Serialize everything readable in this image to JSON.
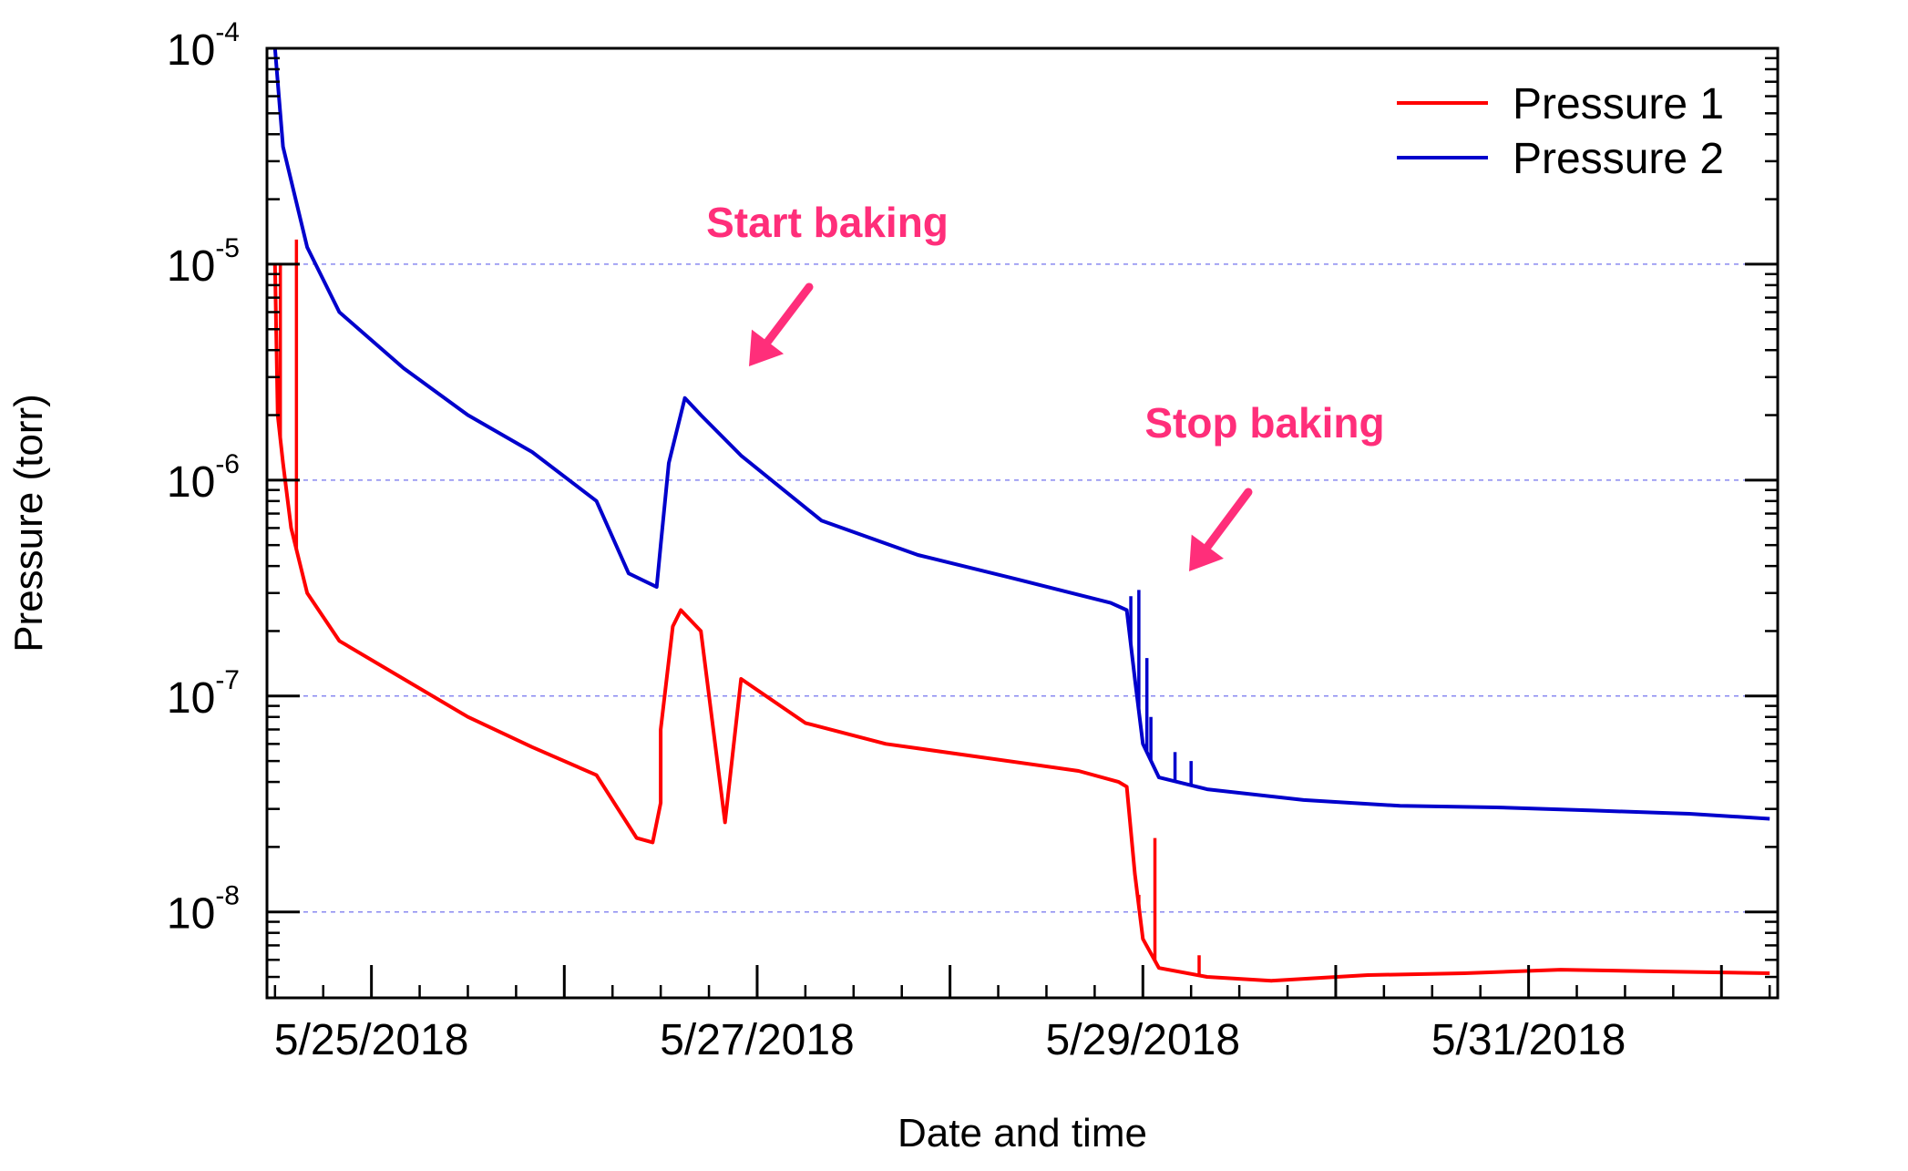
{
  "chart_data": {
    "type": "line",
    "title": "",
    "xlabel": "Date and time",
    "ylabel": "Pressure (torr)",
    "y_scale": "log",
    "ylim": [
      "1.0e-8 / 2.5 (~4e-9)",
      "1e-4"
    ],
    "ylim_numeric": [
      4e-09,
      0.0001
    ],
    "xlim": [
      "2018-05-24 11:00",
      "2018-06-01 07:00"
    ],
    "x_ticks": [
      "5/25/2018",
      "5/27/2018",
      "5/29/2018",
      "5/31/2018"
    ],
    "x_tick_dates": [
      "2018-05-25 00:00",
      "2018-05-27 00:00",
      "2018-05-29 00:00",
      "2018-05-31 00:00"
    ],
    "y_ticks": [
      {
        "value": 1e-08,
        "base": "10",
        "exp": "-8"
      },
      {
        "value": 1e-07,
        "base": "10",
        "exp": "-7"
      },
      {
        "value": 1e-06,
        "base": "10",
        "exp": "-6"
      },
      {
        "value": 1e-05,
        "base": "10",
        "exp": "-5"
      },
      {
        "value": 0.0001,
        "base": "10",
        "exp": "-4"
      }
    ],
    "grid": "horizontal dashed at decades",
    "legend_position": "top-right",
    "series": [
      {
        "name": "Pressure 1",
        "color": "#ff0000",
        "points": [
          [
            "2018-05-24 12:00",
            1e-05
          ],
          [
            "2018-05-24 12:20",
            2e-06
          ],
          [
            "2018-05-24 13:00",
            1.2e-06
          ],
          [
            "2018-05-24 14:00",
            6e-07
          ],
          [
            "2018-05-24 16:00",
            3e-07
          ],
          [
            "2018-05-24 20:00",
            1.8e-07
          ],
          [
            "2018-05-25 04:00",
            1.2e-07
          ],
          [
            "2018-05-25 12:00",
            8e-08
          ],
          [
            "2018-05-25 20:00",
            5.8e-08
          ],
          [
            "2018-05-26 04:00",
            4.3e-08
          ],
          [
            "2018-05-26 12:00",
            3.2e-08
          ],
          [
            "2018-05-26 20:00",
            2.6e-08
          ],
          [
            "2018-05-26 09:00",
            2.2e-08
          ],
          [
            "2018-05-26 11:00",
            2.1e-08
          ],
          [
            "2018-05-26 12:00",
            7e-08
          ],
          [
            "2018-05-26 13:30",
            2.1e-07
          ],
          [
            "2018-05-26 14:30",
            2.5e-07
          ],
          [
            "2018-05-26 17:00",
            2e-07
          ],
          [
            "2018-05-26 22:00",
            1.2e-07
          ],
          [
            "2018-05-27 06:00",
            7.5e-08
          ],
          [
            "2018-05-27 16:00",
            6e-08
          ],
          [
            "2018-05-28 04:00",
            5.2e-08
          ],
          [
            "2018-05-28 16:00",
            4.5e-08
          ],
          [
            "2018-05-28 21:00",
            4e-08
          ],
          [
            "2018-05-28 22:00",
            3.8e-08
          ],
          [
            "2018-05-28 23:00",
            1.5e-08
          ],
          [
            "2018-05-29 00:00",
            7.5e-09
          ],
          [
            "2018-05-29 02:00",
            5.5e-09
          ],
          [
            "2018-05-29 08:00",
            5e-09
          ],
          [
            "2018-05-29 16:00",
            4.8e-09
          ],
          [
            "2018-05-30 04:00",
            5.1e-09
          ],
          [
            "2018-05-30 16:00",
            5.2e-09
          ],
          [
            "2018-05-31 04:00",
            5.4e-09
          ],
          [
            "2018-05-31 16:00",
            5.3e-09
          ],
          [
            "2018-06-01 06:00",
            5.2e-09
          ]
        ],
        "spikes": [
          [
            "2018-05-24 12:40",
            1e-05
          ],
          [
            "2018-05-24 14:40",
            1.3e-05
          ],
          [
            "2018-05-29 01:30",
            2.2e-08
          ],
          [
            "2018-05-28 23:30",
            1.2e-08
          ],
          [
            "2018-05-29 07:00",
            6.3e-09
          ]
        ]
      },
      {
        "name": "Pressure 2",
        "color": "#0000cc",
        "points": [
          [
            "2018-05-24 12:00",
            0.0001
          ],
          [
            "2018-05-24 13:00",
            3.5e-05
          ],
          [
            "2018-05-24 16:00",
            1.2e-05
          ],
          [
            "2018-05-24 20:00",
            6e-06
          ],
          [
            "2018-05-25 04:00",
            3.3e-06
          ],
          [
            "2018-05-25 12:00",
            2e-06
          ],
          [
            "2018-05-25 20:00",
            1.35e-06
          ],
          [
            "2018-05-26 04:00",
            8e-07
          ],
          [
            "2018-05-26 12:00",
            5e-07
          ],
          [
            "2018-05-26 08:00",
            3.7e-07
          ],
          [
            "2018-05-26 11:30",
            3.2e-07
          ],
          [
            "2018-05-26 13:00",
            1.2e-06
          ],
          [
            "2018-05-26 15:00",
            2.4e-06
          ],
          [
            "2018-05-26 17:00",
            2e-06
          ],
          [
            "2018-05-26 22:00",
            1.3e-06
          ],
          [
            "2018-05-27 08:00",
            6.5e-07
          ],
          [
            "2018-05-27 20:00",
            4.5e-07
          ],
          [
            "2018-05-28 08:00",
            3.5e-07
          ],
          [
            "2018-05-28 20:00",
            2.7e-07
          ],
          [
            "2018-05-28 22:00",
            2.5e-07
          ],
          [
            "2018-05-28 23:00",
            1.2e-07
          ],
          [
            "2018-05-29 00:00",
            6e-08
          ],
          [
            "2018-05-29 02:00",
            4.2e-08
          ],
          [
            "2018-05-29 08:00",
            3.7e-08
          ],
          [
            "2018-05-29 20:00",
            3.3e-08
          ],
          [
            "2018-05-30 08:00",
            3.1e-08
          ],
          [
            "2018-05-30 20:00",
            3.05e-08
          ],
          [
            "2018-05-31 08:00",
            2.95e-08
          ],
          [
            "2018-05-31 20:00",
            2.85e-08
          ],
          [
            "2018-06-01 06:00",
            2.7e-08
          ]
        ],
        "spikes": [
          [
            "2018-05-28 22:30",
            2.9e-07
          ],
          [
            "2018-05-28 23:30",
            3.1e-07
          ],
          [
            "2018-05-29 00:30",
            1.5e-07
          ],
          [
            "2018-05-29 01:00",
            8e-08
          ],
          [
            "2018-05-29 04:00",
            5.5e-08
          ],
          [
            "2018-05-29 06:00",
            5e-08
          ]
        ]
      }
    ],
    "annotations": [
      {
        "text": "Start baking",
        "color": "#ff2e7a",
        "target": [
          "2018-05-26 14:30",
          2.5e-06
        ]
      },
      {
        "text": "Stop baking",
        "color": "#ff2e7a",
        "target": [
          "2018-05-28 22:00",
          2.9e-07
        ]
      }
    ]
  }
}
